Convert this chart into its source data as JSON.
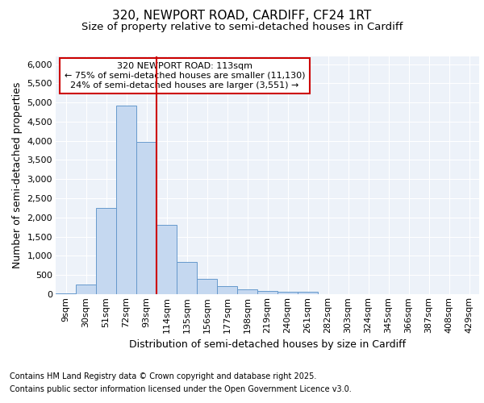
{
  "title_line1": "320, NEWPORT ROAD, CARDIFF, CF24 1RT",
  "title_line2": "Size of property relative to semi-detached houses in Cardiff",
  "xlabel": "Distribution of semi-detached houses by size in Cardiff",
  "ylabel": "Number of semi-detached properties",
  "footer_line1": "Contains HM Land Registry data © Crown copyright and database right 2025.",
  "footer_line2": "Contains public sector information licensed under the Open Government Licence v3.0.",
  "bar_labels": [
    "9sqm",
    "30sqm",
    "51sqm",
    "72sqm",
    "93sqm",
    "114sqm",
    "135sqm",
    "156sqm",
    "177sqm",
    "198sqm",
    "219sqm",
    "240sqm",
    "261sqm",
    "282sqm",
    "303sqm",
    "324sqm",
    "345sqm",
    "366sqm",
    "387sqm",
    "408sqm",
    "429sqm"
  ],
  "bar_values": [
    30,
    260,
    2250,
    4920,
    3980,
    1800,
    850,
    400,
    200,
    130,
    80,
    60,
    55,
    0,
    0,
    0,
    0,
    0,
    0,
    0,
    0
  ],
  "bar_color": "#c5d8f0",
  "bar_edge_color": "#6699cc",
  "vline_index": 5,
  "vline_color": "#cc0000",
  "annotation_title": "320 NEWPORT ROAD: 113sqm",
  "annotation_line2": "← 75% of semi-detached houses are smaller (11,130)",
  "annotation_line3": "24% of semi-detached houses are larger (3,551) →",
  "annotation_box_facecolor": "#ffffff",
  "annotation_box_edgecolor": "#cc0000",
  "ylim": [
    0,
    6200
  ],
  "yticks": [
    0,
    500,
    1000,
    1500,
    2000,
    2500,
    3000,
    3500,
    4000,
    4500,
    5000,
    5500,
    6000
  ],
  "bg_color": "#ffffff",
  "plot_bg_color": "#edf2f9",
  "grid_color": "#ffffff",
  "title_fontsize": 11,
  "subtitle_fontsize": 9.5,
  "axis_label_fontsize": 9,
  "tick_fontsize": 8,
  "footer_fontsize": 7,
  "annotation_fontsize": 8
}
